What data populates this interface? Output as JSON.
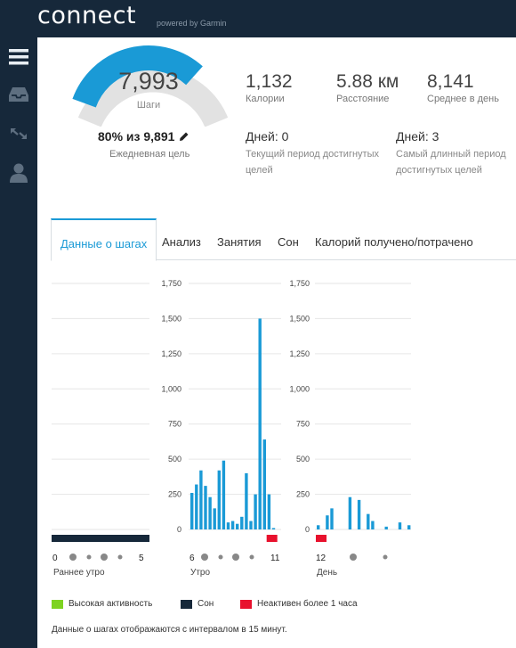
{
  "app": {
    "logo": "connect",
    "powered_by": "powered by Garmin"
  },
  "sidebar": {
    "items": [
      {
        "icon": "menu-icon"
      },
      {
        "icon": "inbox-icon"
      },
      {
        "icon": "expand-arrows-icon"
      },
      {
        "icon": "user-icon"
      }
    ]
  },
  "summary": {
    "steps_value": "7,993",
    "steps_label": "Шаги",
    "goal_text": "80% из 9,891",
    "goal_label": "Ежедневная цель",
    "goal_progress": 0.8,
    "calories_value": "1,132",
    "calories_label": "Калории",
    "distance_value": "5.88 км",
    "distance_label": "Расстояние",
    "average_value": "8,141",
    "average_label": "Среднее в день",
    "current_streak_value": "Дней: 0",
    "current_streak_label_1": "Текущий период достигнутых",
    "current_streak_label_2": "целей",
    "longest_streak_value": "Дней: 3",
    "longest_streak_label_1": "Самый длинный период",
    "longest_streak_label_2": "достигнутых целей"
  },
  "tabs": [
    {
      "label": "Данные о шагах",
      "active": true
    },
    {
      "label": "Анализ",
      "active": false
    },
    {
      "label": "Занятия",
      "active": false
    },
    {
      "label": "Сон",
      "active": false
    },
    {
      "label": "Калорий получено/потрачено",
      "active": false
    }
  ],
  "chart_data": {
    "type": "bar",
    "ylim": [
      0,
      1750
    ],
    "yticks": [
      "0",
      "250",
      "500",
      "750",
      "1,000",
      "1,250",
      "1,500",
      "1,750"
    ],
    "grid": true,
    "colors": {
      "steps": "#1a9ad6",
      "sleep": "#16283a",
      "inactive": "#e8112d",
      "high_activity": "#7ed321"
    },
    "panels": [
      {
        "name": "Раннее утро",
        "tick_labels": [
          "0",
          "5"
        ],
        "values": [],
        "sleep": true,
        "inactive_markers": []
      },
      {
        "name": "Утро",
        "tick_labels": [
          "6",
          "11"
        ],
        "values": [
          260,
          320,
          420,
          310,
          230,
          150,
          420,
          490,
          50,
          60,
          40,
          90,
          400,
          60,
          250,
          1500,
          640,
          250,
          10
        ],
        "sleep": false,
        "inactive_markers": [
          17
        ]
      },
      {
        "name": "День",
        "tick_labels": [
          "12"
        ],
        "values": [
          30,
          0,
          100,
          150,
          0,
          0,
          0,
          230,
          0,
          210,
          0,
          110,
          60,
          0,
          0,
          20,
          0,
          0,
          50,
          0,
          30
        ],
        "sleep": false,
        "inactive_markers": [
          0
        ]
      }
    ]
  },
  "legend": [
    {
      "label": "Высокая активность",
      "color": "#7ed321"
    },
    {
      "label": "Сон",
      "color": "#16283a"
    },
    {
      "label": "Неактивен более 1 часа",
      "color": "#e8112d"
    }
  ],
  "footnote": "Данные о шагах отображаются с интервалом в 15 минут."
}
